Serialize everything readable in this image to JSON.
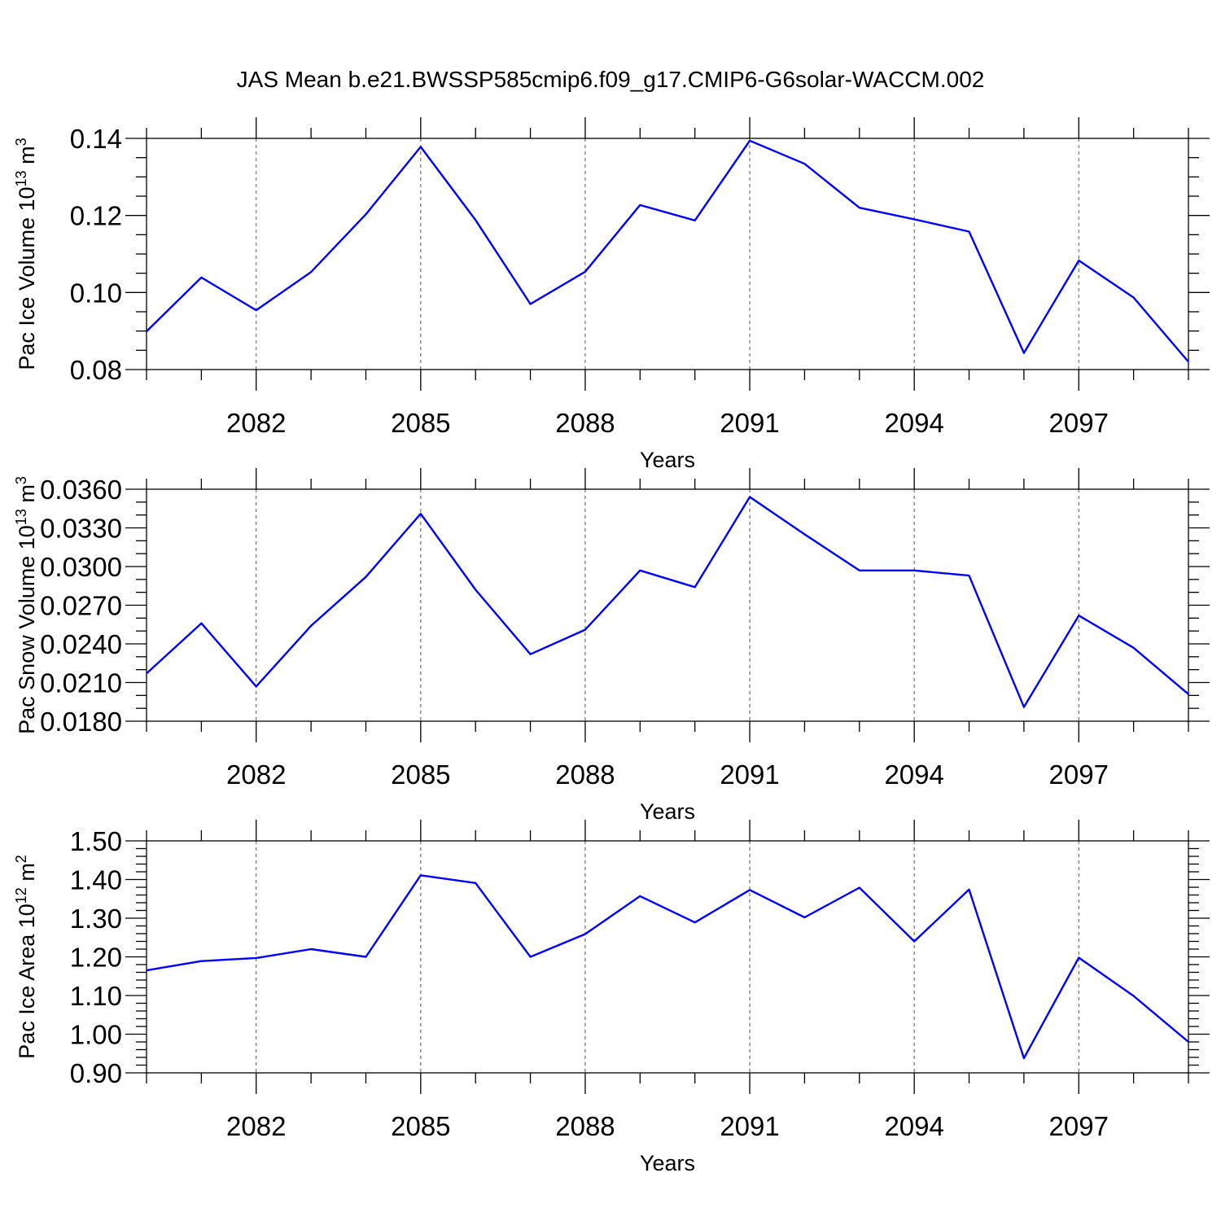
{
  "title": "JAS Mean b.e21.BWSSP585cmip6.f09_g17.CMIP6-G6solar-WACCM.002",
  "chart_data": [
    {
      "type": "line",
      "ylabel": "Pac Ice Volume 10",
      "ylabel_exp": "13",
      "ylabel_unit": " m",
      "ylabel_unit_exp": "3",
      "xlabel": "Years",
      "xlim": [
        2080,
        2099
      ],
      "ylim": [
        0.08,
        0.14
      ],
      "xticks": [
        2082,
        2085,
        2088,
        2091,
        2094,
        2097
      ],
      "xtick_labels": [
        "2082",
        "2085",
        "2088",
        "2091",
        "2094",
        "2097"
      ],
      "yticks": [
        0.08,
        0.1,
        0.12,
        0.14
      ],
      "ytick_labels": [
        "0.08",
        "0.10",
        "0.12",
        "0.14"
      ],
      "y_minor_step": 0.005,
      "grid": "vertical dashed at major x ticks",
      "color": "#0000ff",
      "x": [
        2080,
        2081,
        2082,
        2083,
        2084,
        2085,
        2086,
        2087,
        2088,
        2089,
        2090,
        2091,
        2092,
        2093,
        2094,
        2095,
        2096,
        2097,
        2098,
        2099
      ],
      "values": [
        0.0899,
        0.1039,
        0.0954,
        0.1053,
        0.1203,
        0.1378,
        0.1188,
        0.097,
        0.1054,
        0.1227,
        0.1187,
        0.1394,
        0.1334,
        0.122,
        0.119,
        0.1158,
        0.0843,
        0.1083,
        0.0987,
        0.082
      ]
    },
    {
      "type": "line",
      "ylabel": "Pac Snow Volume 10",
      "ylabel_exp": "13",
      "ylabel_unit": " m",
      "ylabel_unit_exp": "3",
      "xlabel": "Years",
      "xlim": [
        2080,
        2099
      ],
      "ylim": [
        0.018,
        0.036
      ],
      "xticks": [
        2082,
        2085,
        2088,
        2091,
        2094,
        2097
      ],
      "xtick_labels": [
        "2082",
        "2085",
        "2088",
        "2091",
        "2094",
        "2097"
      ],
      "yticks": [
        0.018,
        0.021,
        0.024,
        0.027,
        0.03,
        0.033,
        0.036
      ],
      "ytick_labels": [
        "0.0180",
        "0.0210",
        "0.0240",
        "0.0270",
        "0.0300",
        "0.0330",
        "0.0360"
      ],
      "y_minor_step": 0.001,
      "grid": "vertical dashed at major x ticks",
      "color": "#0000ff",
      "x": [
        2080,
        2081,
        2082,
        2083,
        2084,
        2085,
        2086,
        2087,
        2088,
        2089,
        2090,
        2091,
        2092,
        2093,
        2094,
        2095,
        2096,
        2097,
        2098,
        2099
      ],
      "values": [
        0.0217,
        0.0256,
        0.0207,
        0.0254,
        0.0292,
        0.0341,
        0.0282,
        0.0232,
        0.0251,
        0.0297,
        0.0284,
        0.0354,
        0.0325,
        0.0297,
        0.0297,
        0.0293,
        0.0191,
        0.0262,
        0.0237,
        0.0201
      ]
    },
    {
      "type": "line",
      "ylabel": "Pac Ice Area 10",
      "ylabel_exp": "12",
      "ylabel_unit": " m",
      "ylabel_unit_exp": "2",
      "xlabel": "Years",
      "xlim": [
        2080,
        2099
      ],
      "ylim": [
        0.9,
        1.5
      ],
      "xticks": [
        2082,
        2085,
        2088,
        2091,
        2094,
        2097
      ],
      "xtick_labels": [
        "2082",
        "2085",
        "2088",
        "2091",
        "2094",
        "2097"
      ],
      "yticks": [
        0.9,
        1.0,
        1.1,
        1.2,
        1.3,
        1.4,
        1.5
      ],
      "ytick_labels": [
        "0.90",
        "1.00",
        "1.10",
        "1.20",
        "1.30",
        "1.40",
        "1.50"
      ],
      "y_minor_step": 0.02,
      "grid": "vertical dashed at major x ticks",
      "color": "#0000ff",
      "x": [
        2080,
        2081,
        2082,
        2083,
        2084,
        2085,
        2086,
        2087,
        2088,
        2089,
        2090,
        2091,
        2092,
        2093,
        2094,
        2095,
        2096,
        2097,
        2098,
        2099
      ],
      "values": [
        1.165,
        1.189,
        1.197,
        1.22,
        1.2,
        1.411,
        1.391,
        1.2,
        1.259,
        1.357,
        1.289,
        1.373,
        1.302,
        1.379,
        1.24,
        1.374,
        0.938,
        1.198,
        1.099,
        0.98
      ]
    }
  ]
}
